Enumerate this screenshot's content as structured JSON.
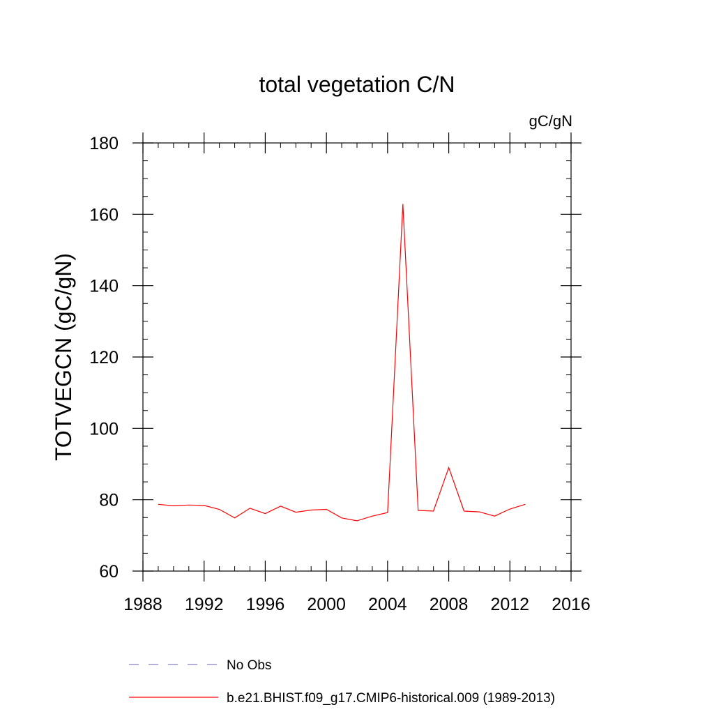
{
  "chart_data": {
    "type": "line",
    "title": "total vegetation C/N",
    "units_label": "gC/gN",
    "ylabel": "TOTVEGCN  (gC/gN)",
    "xlabel": "",
    "xlim": [
      1988,
      2016
    ],
    "ylim": [
      60,
      180
    ],
    "x_ticks": [
      1988,
      1992,
      1996,
      2000,
      2004,
      2008,
      2012,
      2016
    ],
    "y_ticks": [
      60,
      80,
      100,
      120,
      140,
      160,
      180
    ],
    "x_minor_step": 1,
    "y_minor_step": 5,
    "grid": false,
    "legend_position": "bottom",
    "series": [
      {
        "name": "No Obs",
        "color": "#8080c0",
        "dash": "dashed",
        "x": [],
        "values": []
      },
      {
        "name": "b.e21.BHIST.f09_g17.CMIP6-historical.009 (1989-2013)",
        "color": "#ff0000",
        "dash": "solid",
        "x": [
          1989,
          1990,
          1991,
          1992,
          1993,
          1994,
          1995,
          1996,
          1997,
          1998,
          1999,
          2000,
          2001,
          2002,
          2003,
          2004,
          2005,
          2006,
          2007,
          2008,
          2009,
          2010,
          2011,
          2012,
          2013
        ],
        "values": [
          78.7,
          78.3,
          78.5,
          78.4,
          77.3,
          74.9,
          77.6,
          76.1,
          78.2,
          76.5,
          77.1,
          77.3,
          74.9,
          74.1,
          75.4,
          76.4,
          162.9,
          77.0,
          76.8,
          89.0,
          76.8,
          76.6,
          75.4,
          77.4,
          78.7
        ]
      }
    ]
  }
}
